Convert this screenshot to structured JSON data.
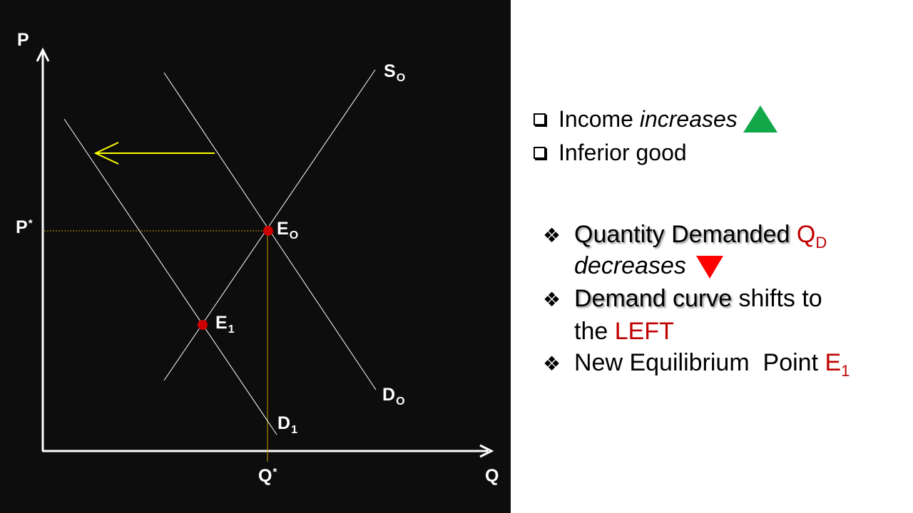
{
  "diagram": {
    "axis_p": "P",
    "axis_q": "Q",
    "p_star": "P",
    "q_star": "Q",
    "star": "*",
    "supply_main": "S",
    "supply_sub": "O",
    "demand0_main": "D",
    "demand0_sub": "O",
    "demand1_main": "D",
    "demand1_sub": "1",
    "e0_main": "E",
    "e0_sub": "O",
    "e1_main": "E",
    "e1_sub": "1",
    "colors": {
      "background": "#0d0d0d",
      "curve": "#ffffff",
      "arrow": "#ffff00",
      "point": "#cc0000",
      "guide": "#c8a000"
    }
  },
  "conditions": [
    {
      "text_plain": "Income ",
      "text_italic": "increases",
      "icon": "green-up-triangle"
    },
    {
      "text_plain": "Inferior good"
    }
  ],
  "effects": {
    "bullet": "❖",
    "b1_bold": "Quantity Demanded",
    "b1_red_main": "Q",
    "b1_red_sub": "D",
    "b1_italic": "decreases",
    "b2_bold": "Demand curve",
    "b2_rest": " shifts to",
    "b2_cont": "the ",
    "b2_red": "LEFT",
    "b3_text": "New Equilibrium  Point ",
    "b3_red_main": "E",
    "b3_red_sub": "1"
  }
}
